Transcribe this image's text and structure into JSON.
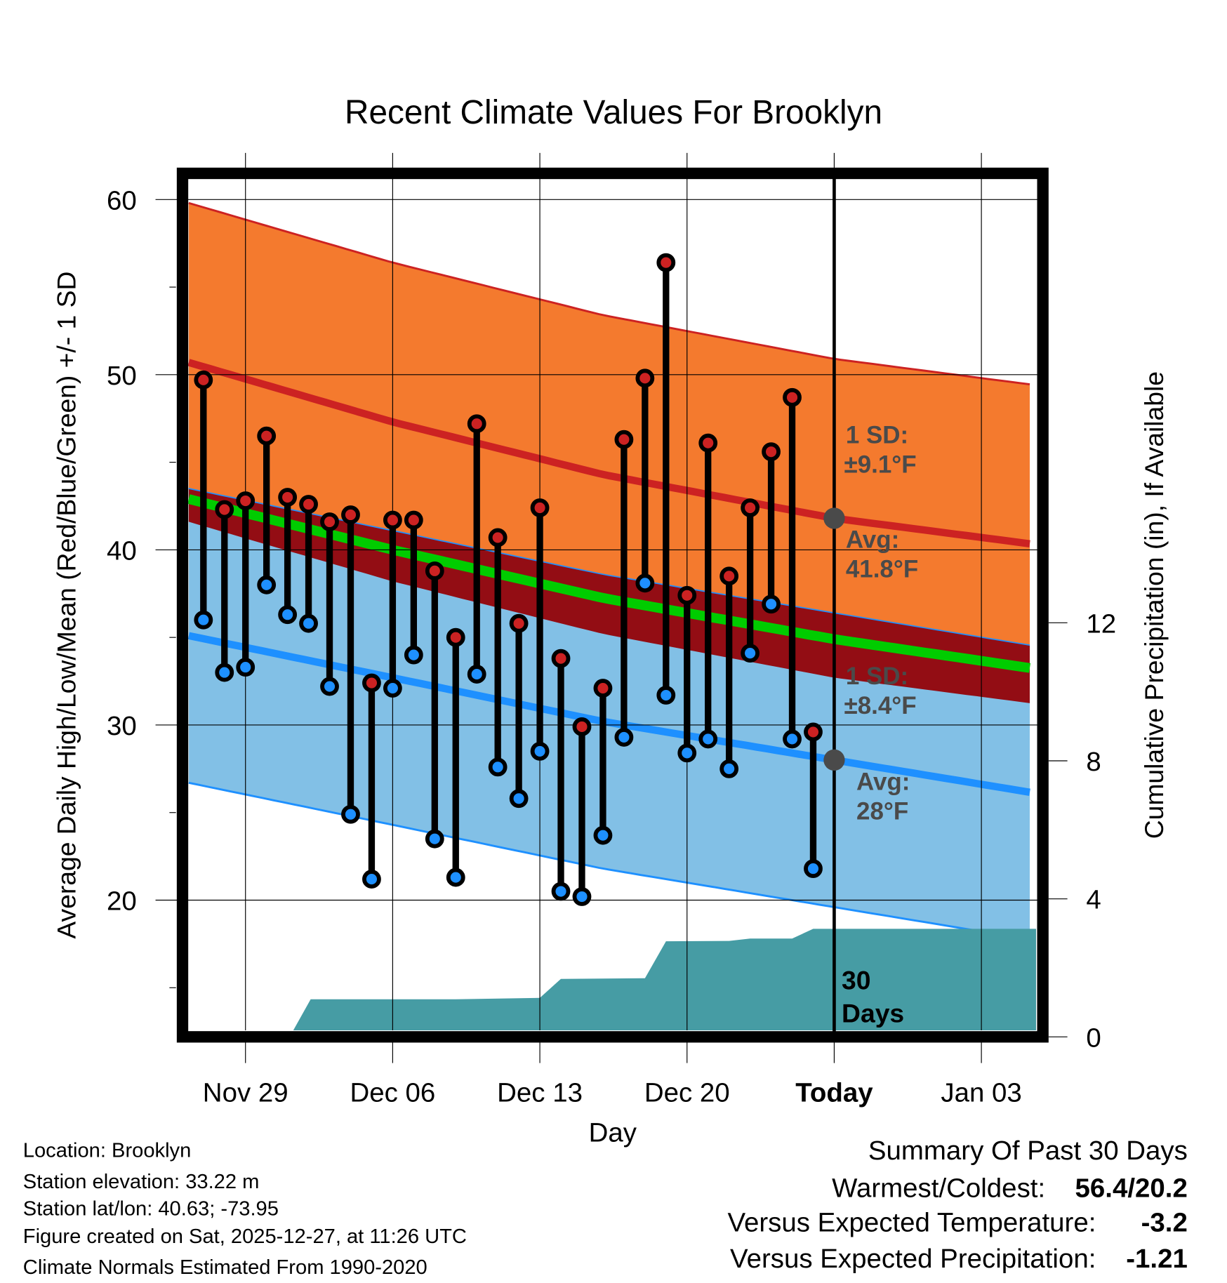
{
  "chart_data": {
    "type": "line",
    "title": "Recent Climate Values For Brooklyn",
    "xlabel": "Day",
    "ylabel": "Average Daily High/Low/Mean (Red/Blue/Green) +/- 1 SD",
    "y2label": "Cumulative Precipitation (in), If Available",
    "x_unit": "days since Nov 29",
    "xlim": [
      -2.7,
      37.6
    ],
    "ylim": [
      12.6,
      62.1
    ],
    "y2lim": [
      0,
      29.7
    ],
    "x_ticks": [
      {
        "value": 0,
        "label": "Nov 29"
      },
      {
        "value": 7,
        "label": "Dec 06"
      },
      {
        "value": 14,
        "label": "Dec 13"
      },
      {
        "value": 21,
        "label": "Dec 20"
      },
      {
        "value": 28,
        "label": "Today"
      },
      {
        "value": 35,
        "label": "Jan 03"
      }
    ],
    "y_ticks": [
      20,
      30,
      40,
      50,
      60
    ],
    "y2_ticks": [
      0,
      4,
      8,
      12
    ],
    "grid": true,
    "daily": {
      "x": [
        -2,
        -1,
        0,
        1,
        2,
        3,
        4,
        5,
        6,
        7,
        8,
        9,
        10,
        11,
        12,
        13,
        14,
        15,
        16,
        17,
        18,
        19,
        20,
        21,
        22,
        23,
        24,
        25,
        26,
        27
      ],
      "high": [
        49.7,
        42.3,
        42.8,
        46.5,
        43.0,
        42.6,
        41.6,
        42.0,
        32.4,
        41.7,
        41.7,
        38.8,
        35.0,
        47.2,
        40.7,
        35.8,
        42.4,
        33.8,
        29.9,
        32.1,
        46.3,
        49.8,
        56.4,
        37.4,
        46.1,
        38.5,
        42.4,
        45.6,
        48.7,
        29.6
      ],
      "low": [
        36.0,
        33.0,
        33.3,
        38.0,
        36.3,
        35.8,
        32.2,
        24.9,
        21.2,
        32.1,
        34.0,
        23.5,
        21.3,
        32.9,
        27.6,
        25.8,
        28.5,
        20.5,
        20.2,
        23.7,
        29.3,
        38.1,
        31.7,
        28.4,
        29.2,
        27.5,
        34.1,
        36.9,
        29.2,
        21.8
      ]
    },
    "normals": {
      "x": [
        -2.7,
        7,
        17,
        28,
        37.6
      ],
      "high_avg": [
        50.7,
        47.3,
        44.3,
        41.8,
        40.3
      ],
      "low_avg": [
        35.1,
        32.7,
        30.2,
        28.0,
        26.1
      ],
      "high_sd": 9.1,
      "low_sd": 8.4
    },
    "precip": {
      "x": [
        -2.7,
        2.1,
        3.1,
        10,
        14,
        15,
        19,
        20,
        23,
        24,
        26,
        27,
        37.6
      ],
      "cumulative": [
        0,
        0,
        1.09,
        1.09,
        1.13,
        1.68,
        1.7,
        2.77,
        2.78,
        2.85,
        2.85,
        3.13,
        3.13
      ]
    },
    "annotations": {
      "high_sd_label": "1 SD:",
      "high_sd_value": "±9.1°F",
      "high_avg_label": "Avg:",
      "high_avg_value": "41.8°F",
      "low_sd_label": "1 SD:",
      "low_sd_value": "±8.4°F",
      "low_avg_label": "Avg:",
      "low_avg_value": "28°F",
      "days_num": "30",
      "days_label": "Days"
    },
    "colors": {
      "high": "#cc2222",
      "low": "#1e90ff",
      "mean": "#00cc00",
      "high_band": "#f47a2e",
      "low_band": "#82c0e6",
      "overlap": "#930d14",
      "precip": "#469ca4"
    }
  },
  "footer": {
    "location": "Location: Brooklyn",
    "elevation": "Station elevation: 33.22 m",
    "latlon": "Station lat/lon: 40.63; -73.95",
    "created": "Figure created on Sat, 2025-12-27, at 11:26 UTC",
    "normals": "Climate Normals Estimated From 1990-2020"
  },
  "summary": {
    "title": "Summary Of Past 30 Days",
    "warmest_label": "Warmest/Coldest:",
    "warmest_value": "56.4/20.2",
    "temp_label": "Versus Expected Temperature:",
    "temp_value": "-3.2",
    "temp_color": "#1e90ff",
    "precip_label": "Versus Expected Precipitation:",
    "precip_value": "-1.21",
    "precip_color": "#a0522d"
  }
}
